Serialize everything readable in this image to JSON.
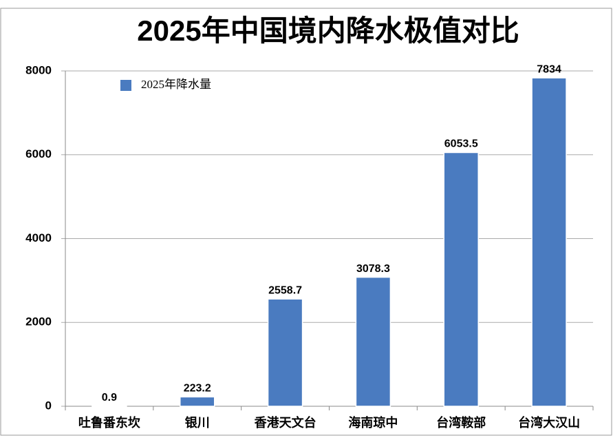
{
  "chart_data": {
    "type": "bar",
    "title": "2025年中国境内降水极值对比",
    "categories": [
      "吐鲁番东坎",
      "银川",
      "香港天文台",
      "海南琼中",
      "台湾鞍部",
      "台湾大汉山"
    ],
    "series": [
      {
        "name": "2025年降水量",
        "color": "#4a7bc0",
        "values": [
          0.9,
          223.2,
          2558.7,
          3078.3,
          6053.5,
          7834
        ]
      }
    ],
    "ylim": [
      0,
      8000
    ],
    "yticks": [
      0,
      2000,
      4000,
      6000,
      8000
    ],
    "grid": true,
    "legend": "upper left"
  }
}
